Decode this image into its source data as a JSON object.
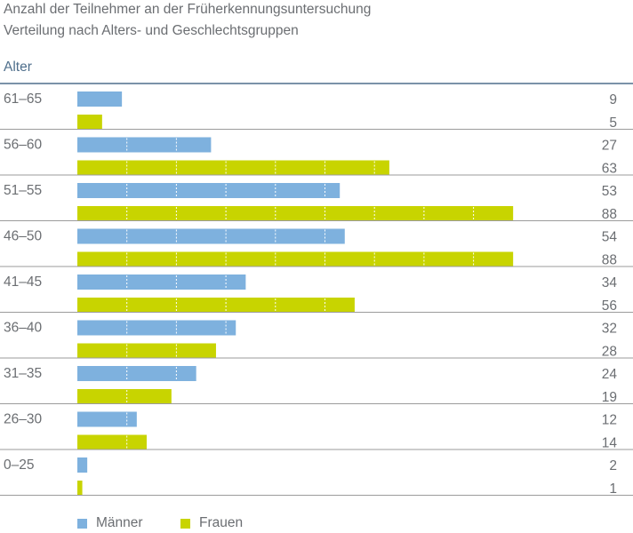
{
  "chart_data": {
    "type": "bar",
    "orientation": "horizontal",
    "title": "Anzahl der Teilnehmer an der Früherkennungsuntersuchung",
    "subtitle": "Verteilung nach Alters- und Geschlechtsgruppen",
    "ylabel": "Alter",
    "categories": [
      "61–65",
      "56–60",
      "51–55",
      "46–50",
      "41–45",
      "36–40",
      "31–35",
      "26–30",
      "0–25"
    ],
    "series": [
      {
        "name": "Männer",
        "color": "#7eb1de",
        "values": [
          9,
          27,
          53,
          54,
          34,
          32,
          24,
          12,
          2
        ]
      },
      {
        "name": "Frauen",
        "color": "#c8d400",
        "values": [
          5,
          63,
          88,
          88,
          56,
          28,
          19,
          14,
          1
        ]
      }
    ],
    "xlim": [
      0,
      100
    ],
    "gridlines": "dotted-inside-bars",
    "legend_position": "bottom-left",
    "rule_color": "#4f6f8c",
    "separator_color": "#9b9b9b"
  }
}
